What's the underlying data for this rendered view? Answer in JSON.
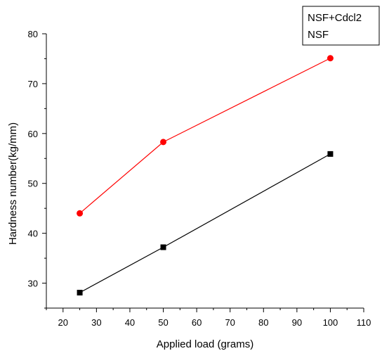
{
  "chart_data": {
    "type": "line",
    "xlabel": "Applied  load  (grams)",
    "ylabel": "Hardness number(kg/mm)",
    "xlim": [
      15,
      110
    ],
    "ylim": [
      25,
      80
    ],
    "x_ticks": [
      "20",
      "30",
      "40",
      "50",
      "60",
      "70",
      "80",
      "90",
      "100",
      "110"
    ],
    "y_ticks": [
      "30",
      "40",
      "50",
      "60",
      "70",
      "80"
    ],
    "grid": false,
    "legend_position": "top-right",
    "series": [
      {
        "name": "NSF+Cdcl2",
        "color": "#ff0000",
        "marker": "circle",
        "x": [
          25,
          50,
          100
        ],
        "y": [
          44,
          58.3,
          75.1
        ]
      },
      {
        "name": "NSF",
        "color": "#000000",
        "marker": "square",
        "x": [
          25,
          50,
          100
        ],
        "y": [
          28.1,
          37.2,
          55.9
        ]
      }
    ]
  }
}
